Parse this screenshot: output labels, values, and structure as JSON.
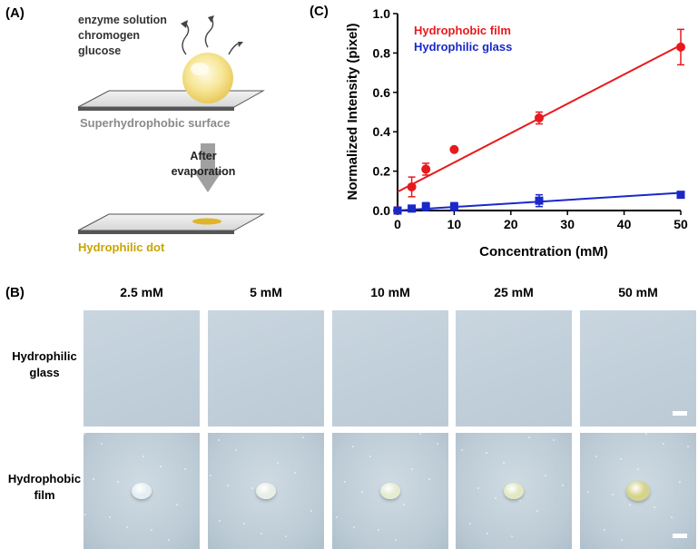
{
  "panel_a": {
    "label": "(A)",
    "reagents": [
      "enzyme solution",
      "chromogen",
      "glucose"
    ],
    "surface_label": "Superhydrophobic surface",
    "step_label_1": "After",
    "step_label_2": "evaporation",
    "dot_label": "Hydrophilic dot",
    "colors": {
      "droplet": "#f5e28a",
      "dot": "#e0b42a",
      "surface": "#777777",
      "arrow": "#9a9a9a"
    }
  },
  "panel_b": {
    "label": "(B)",
    "columns": [
      "2.5 mM",
      "5 mM",
      "10 mM",
      "25 mM",
      "50 mM"
    ],
    "rows": [
      {
        "title_1": "Hydrophilic",
        "title_2": "glass",
        "kind": "glass"
      },
      {
        "title_1": "Hydrophobic",
        "title_2": "film",
        "kind": "film"
      }
    ],
    "droplet_colors": [
      "#e6eef2",
      "#e8eee8",
      "#e6ecd2",
      "#e2e8c4",
      "#d6d38a"
    ]
  },
  "panel_c": {
    "label": "(C)"
  },
  "chart_data": {
    "type": "scatter",
    "xlabel": "Concentration (mM)",
    "ylabel": "Normalized Intensity (pixel)",
    "xlim": [
      0,
      50
    ],
    "ylim": [
      0,
      1.0
    ],
    "xticks": [
      "0",
      "10",
      "20",
      "30",
      "40",
      "50"
    ],
    "yticks": [
      "0.0",
      "0.2",
      "0.4",
      "0.6",
      "0.8",
      "1.0"
    ],
    "grid": false,
    "legend_position": "top-left",
    "series": [
      {
        "name": "Hydrophobic film",
        "color": "#e8191c",
        "marker": "circle",
        "x": [
          0,
          2.5,
          5,
          10,
          25,
          50
        ],
        "y": [
          0.0,
          0.12,
          0.21,
          0.31,
          0.47,
          0.83
        ],
        "err": [
          0.01,
          0.05,
          0.03,
          0.0,
          0.03,
          0.09
        ],
        "fit": [
          [
            0,
            0.095
          ],
          [
            50,
            0.84
          ]
        ]
      },
      {
        "name": "Hydrophilic glass",
        "color": "#1a28c8",
        "marker": "square",
        "x": [
          0,
          2.5,
          5,
          10,
          25,
          50
        ],
        "y": [
          0.0,
          0.01,
          0.02,
          0.02,
          0.05,
          0.08
        ],
        "err": [
          0.005,
          0.01,
          0.02,
          0.02,
          0.03,
          0.015
        ],
        "fit": [
          [
            0,
            0.0
          ],
          [
            50,
            0.09
          ]
        ]
      }
    ]
  }
}
